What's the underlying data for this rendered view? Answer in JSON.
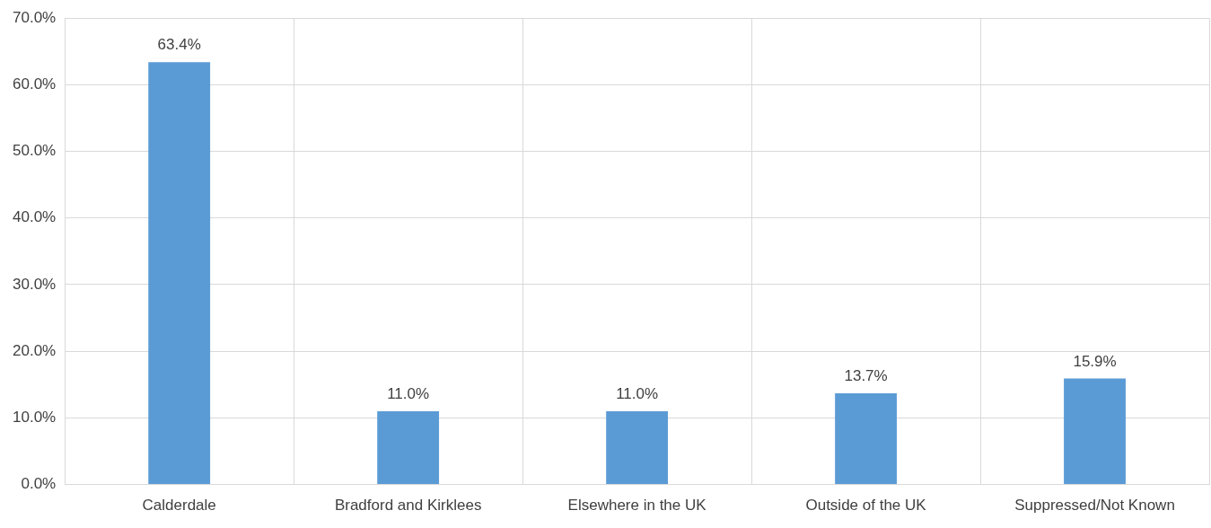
{
  "chart_data": {
    "type": "bar",
    "categories": [
      "Calderdale",
      "Bradford and Kirklees",
      "Elsewhere in the UK",
      "Outside of the UK",
      "Suppressed/Not Known"
    ],
    "values": [
      63.4,
      11.0,
      11.0,
      13.7,
      15.9
    ],
    "value_labels": [
      "63.4%",
      "11.0%",
      "11.0%",
      "13.7%",
      "15.9%"
    ],
    "color": "#5b9bd5",
    "ylim": [
      0,
      70
    ],
    "yticks": [
      {
        "value": 0,
        "label": "0.0%"
      },
      {
        "value": 10,
        "label": "10.0%"
      },
      {
        "value": 20,
        "label": "20.0%"
      },
      {
        "value": 30,
        "label": "30.0%"
      },
      {
        "value": 40,
        "label": "40.0%"
      },
      {
        "value": 50,
        "label": "50.0%"
      },
      {
        "value": 60,
        "label": "60.0%"
      },
      {
        "value": 70,
        "label": "70.0%"
      }
    ],
    "grid": true,
    "legend": false
  }
}
